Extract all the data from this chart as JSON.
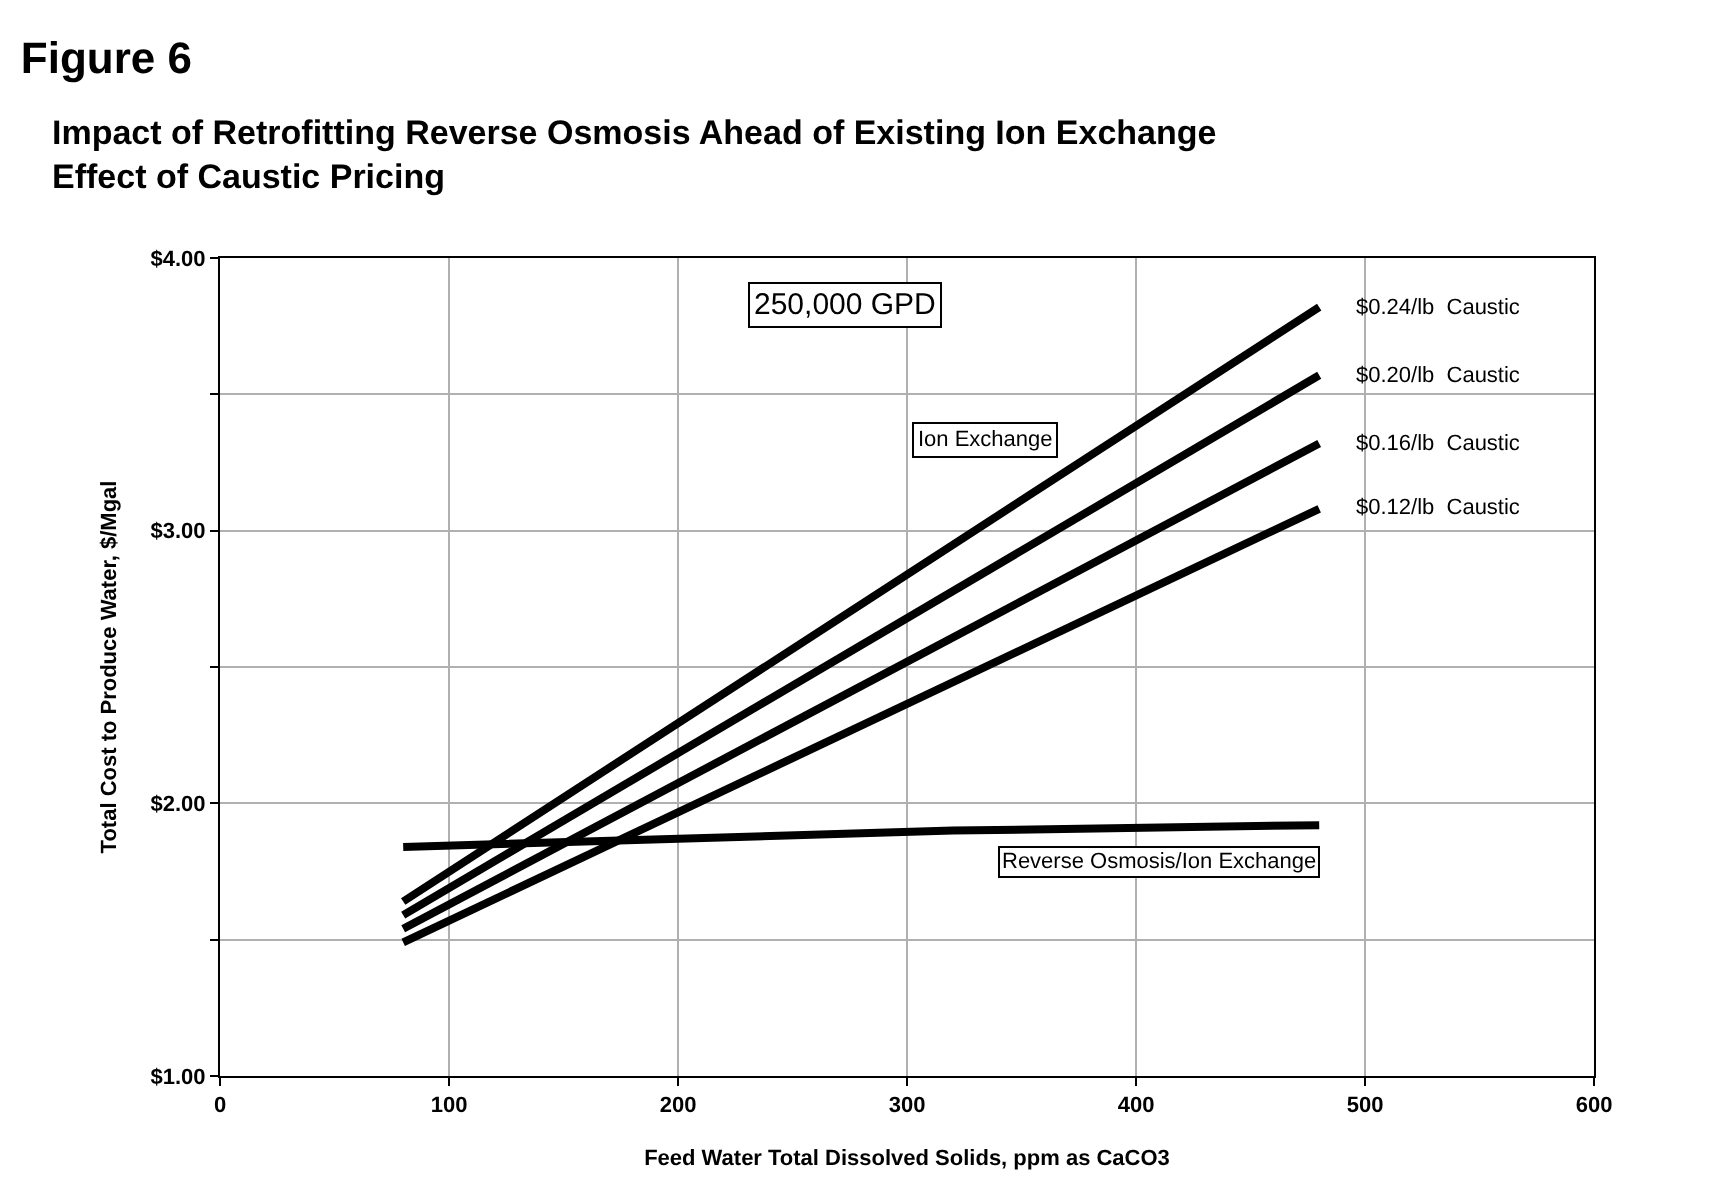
{
  "chart_data": {
    "type": "line",
    "title": "Figure 6",
    "subtitle": "Impact of Retrofitting Reverse Osmosis Ahead of Existing Ion Exchange\nEffect of Caustic Pricing",
    "xlabel": "Feed Water Total Dissolved Solids, ppm as CaCO3",
    "ylabel": "Total Cost to Produce Water, $/Mgal",
    "annotations": [
      "250,000 GPD",
      "Ion Exchange"
    ],
    "x": [
      80,
      480
    ],
    "series": [
      {
        "name": "$0.24/lb  Caustic",
        "color": "#000000",
        "values": [
          1.64,
          3.82
        ]
      },
      {
        "name": "$0.20/lb  Caustic",
        "color": "#000000",
        "values": [
          1.59,
          3.57
        ]
      },
      {
        "name": "$0.16/lb  Caustic",
        "color": "#000000",
        "values": [
          1.54,
          3.32
        ]
      },
      {
        "name": "$0.12/lb  Caustic",
        "color": "#000000",
        "values": [
          1.49,
          3.08
        ]
      },
      {
        "name": "Reverse Osmosis/Ion Exchange",
        "color": "#000000",
        "x": [
          80,
          320,
          480
        ],
        "values": [
          1.84,
          1.9,
          1.92
        ]
      }
    ],
    "xlim": [
      0,
      600
    ],
    "xticks": [
      0,
      100,
      200,
      300,
      400,
      500,
      600
    ],
    "ylim": [
      1,
      4
    ],
    "yticks": [
      {
        "value": 1,
        "label": "$1.00"
      },
      {
        "value": 1.5,
        "label": null
      },
      {
        "value": 2,
        "label": "$2.00"
      },
      {
        "value": 2.5,
        "label": null
      },
      {
        "value": 3,
        "label": "$3.00"
      },
      {
        "value": 3.5,
        "label": null
      },
      {
        "value": 4,
        "label": "$4.00"
      }
    ],
    "grid": true,
    "legend": false,
    "marker": "none",
    "line_style": "solid"
  }
}
